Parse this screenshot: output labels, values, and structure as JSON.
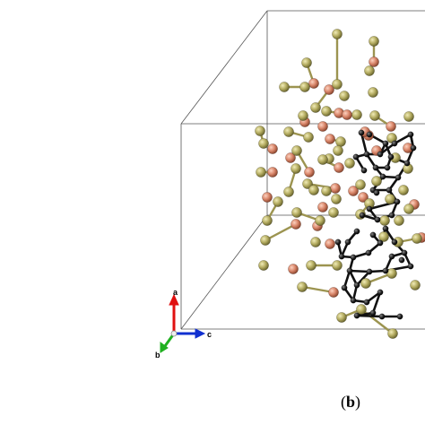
{
  "figure": {
    "panel_label": "(b)",
    "panel_letter": "b"
  },
  "axes_indicator": {
    "a": {
      "label": "a",
      "color": "#e01010"
    },
    "b": {
      "label": "b",
      "color": "#20b020"
    },
    "c": {
      "label": "c",
      "color": "#1030d0"
    }
  },
  "colors": {
    "cell_edge": "#555555",
    "olive_atom": "#b5ad62",
    "salmon_atom": "#d9866a",
    "carbon_atom": "#1a1a1a",
    "bond_olive": "#9c9450",
    "carbon_bond": "#111111"
  }
}
